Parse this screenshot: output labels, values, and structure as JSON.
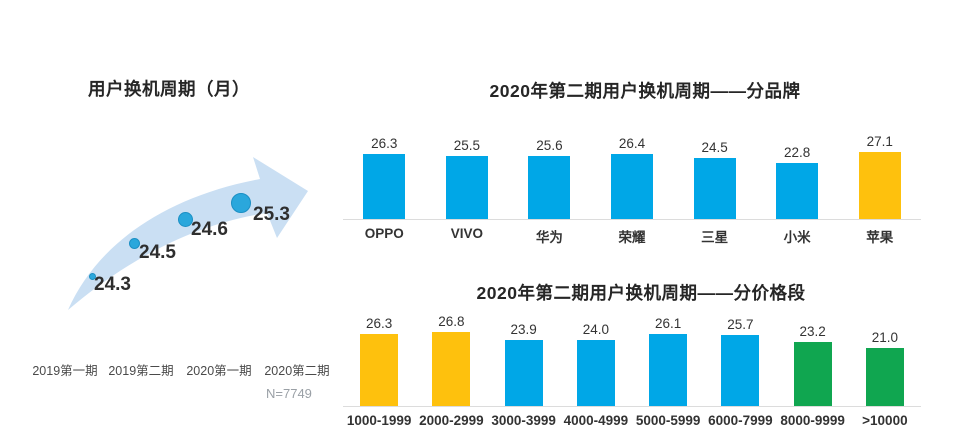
{
  "colors": {
    "blue": "#00A7E7",
    "yellow": "#FEC10D",
    "green": "#10A650",
    "arrow_fill": "#CADFF3",
    "bubble_fill": "#2AA7DC",
    "bubble_edge": "#1B8FC4",
    "baseline": "#DCDCDC",
    "text_dark": "#333333",
    "text_muted": "#9AA0A6"
  },
  "chart_data": [
    {
      "type": "scatter",
      "title": "用户换机周期（月）",
      "categories": [
        "2019第一期",
        "2019第二期",
        "2020第一期",
        "2020第二期"
      ],
      "values": [
        24.3,
        24.5,
        24.6,
        25.3
      ],
      "labels": [
        "24.3",
        "24.5",
        "24.6",
        "25.3"
      ],
      "note": "N=7749",
      "annotation": "rising light-blue trend arrow with growing bubbles",
      "grid": false
    },
    {
      "type": "bar",
      "title": "2020年第二期用户换机周期——分品牌",
      "categories": [
        "OPPO",
        "VIVO",
        "华为",
        "荣耀",
        "三星",
        "小米",
        "苹果"
      ],
      "values": [
        26.3,
        25.5,
        25.6,
        26.4,
        24.5,
        22.8,
        27.1
      ],
      "labels": [
        "26.3",
        "25.5",
        "25.6",
        "26.4",
        "24.5",
        "22.8",
        "27.1"
      ],
      "bar_colors": [
        "blue",
        "blue",
        "blue",
        "blue",
        "blue",
        "blue",
        "yellow"
      ],
      "grid": false,
      "value_labels": "above bars",
      "ylim": [
        0,
        27.1
      ]
    },
    {
      "type": "bar",
      "title": "2020年第二期用户换机周期——分价格段",
      "categories": [
        "1000-1999",
        "2000-2999",
        "3000-3999",
        "4000-4999",
        "5000-5999",
        "6000-7999",
        "8000-9999",
        ">10000"
      ],
      "values": [
        26.3,
        26.8,
        23.9,
        24.0,
        26.1,
        25.7,
        23.2,
        21.0
      ],
      "labels": [
        "26.3",
        "26.8",
        "23.9",
        "24.0",
        "26.1",
        "25.7",
        "23.2",
        "21.0"
      ],
      "bar_colors": [
        "yellow",
        "yellow",
        "blue",
        "blue",
        "blue",
        "blue",
        "green",
        "green"
      ],
      "grid": false,
      "value_labels": "above bars",
      "ylim": [
        0,
        26.8
      ]
    }
  ]
}
